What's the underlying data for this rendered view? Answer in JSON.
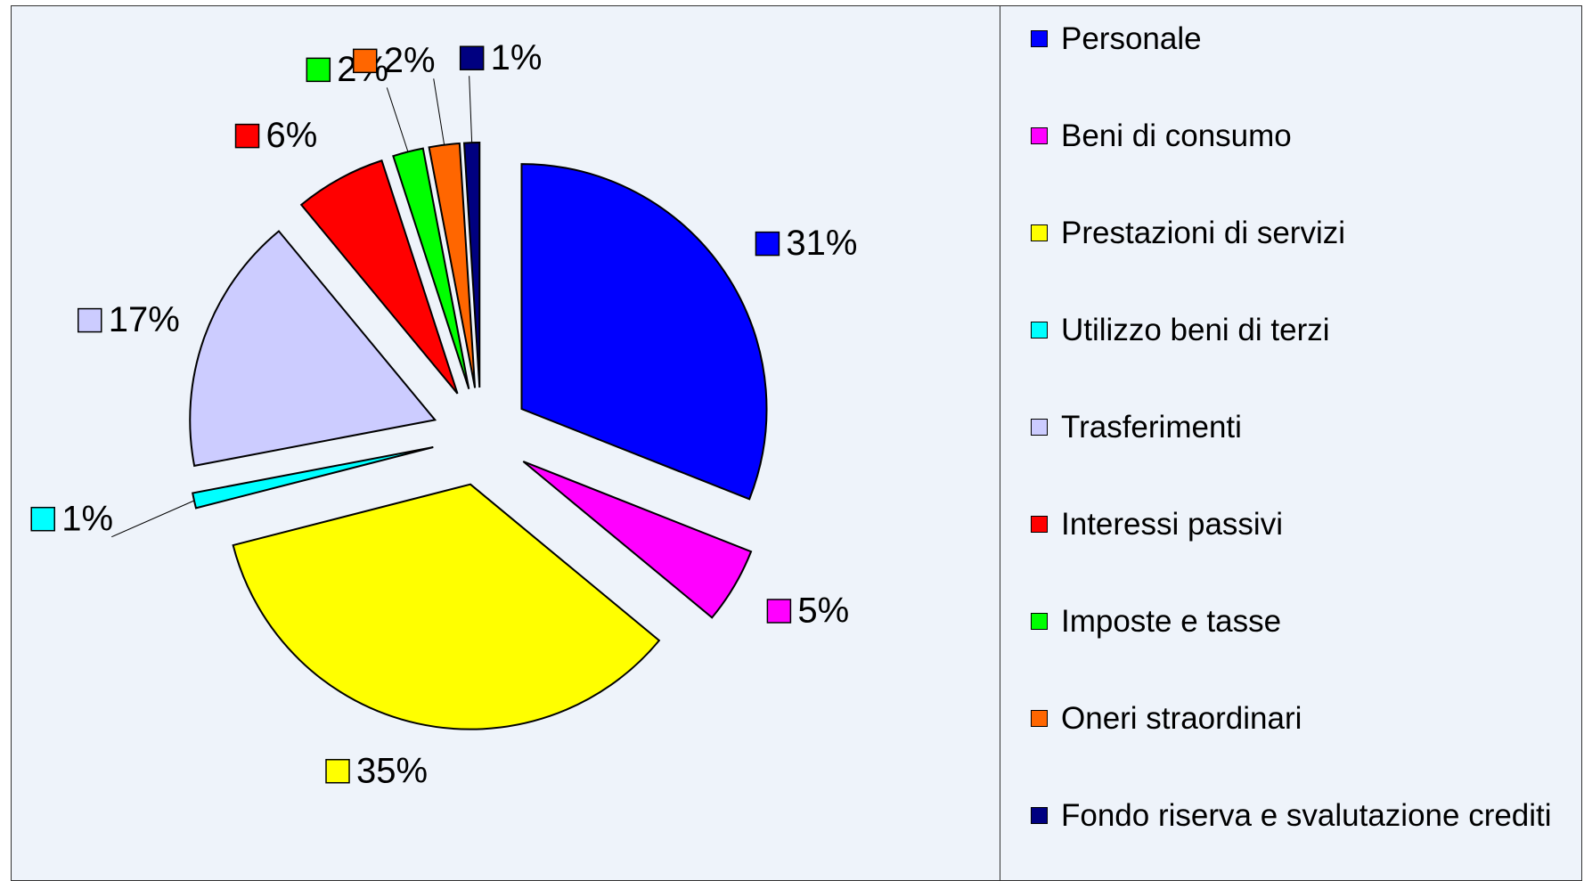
{
  "chart_data": {
    "type": "pie",
    "categories": [
      "Personale",
      "Beni di consumo",
      "Prestazioni di servizi",
      "Utilizzo beni di terzi",
      "Trasferimenti",
      "Interessi passivi",
      "Imposte e tasse",
      "Oneri straordinari",
      "Fondo riserva e svalutazione crediti"
    ],
    "values": [
      31,
      5,
      35,
      1,
      17,
      6,
      2,
      2,
      1
    ],
    "value_labels": [
      "31%",
      "5%",
      "35%",
      "1%",
      "17%",
      "6%",
      "2%",
      "2%",
      "1%"
    ],
    "colors": [
      "#0000ff",
      "#ff00ff",
      "#ffff00",
      "#00ffff",
      "#ccccff",
      "#ff0000",
      "#00ff00",
      "#ff6600",
      "#000080"
    ],
    "legend": "right"
  }
}
